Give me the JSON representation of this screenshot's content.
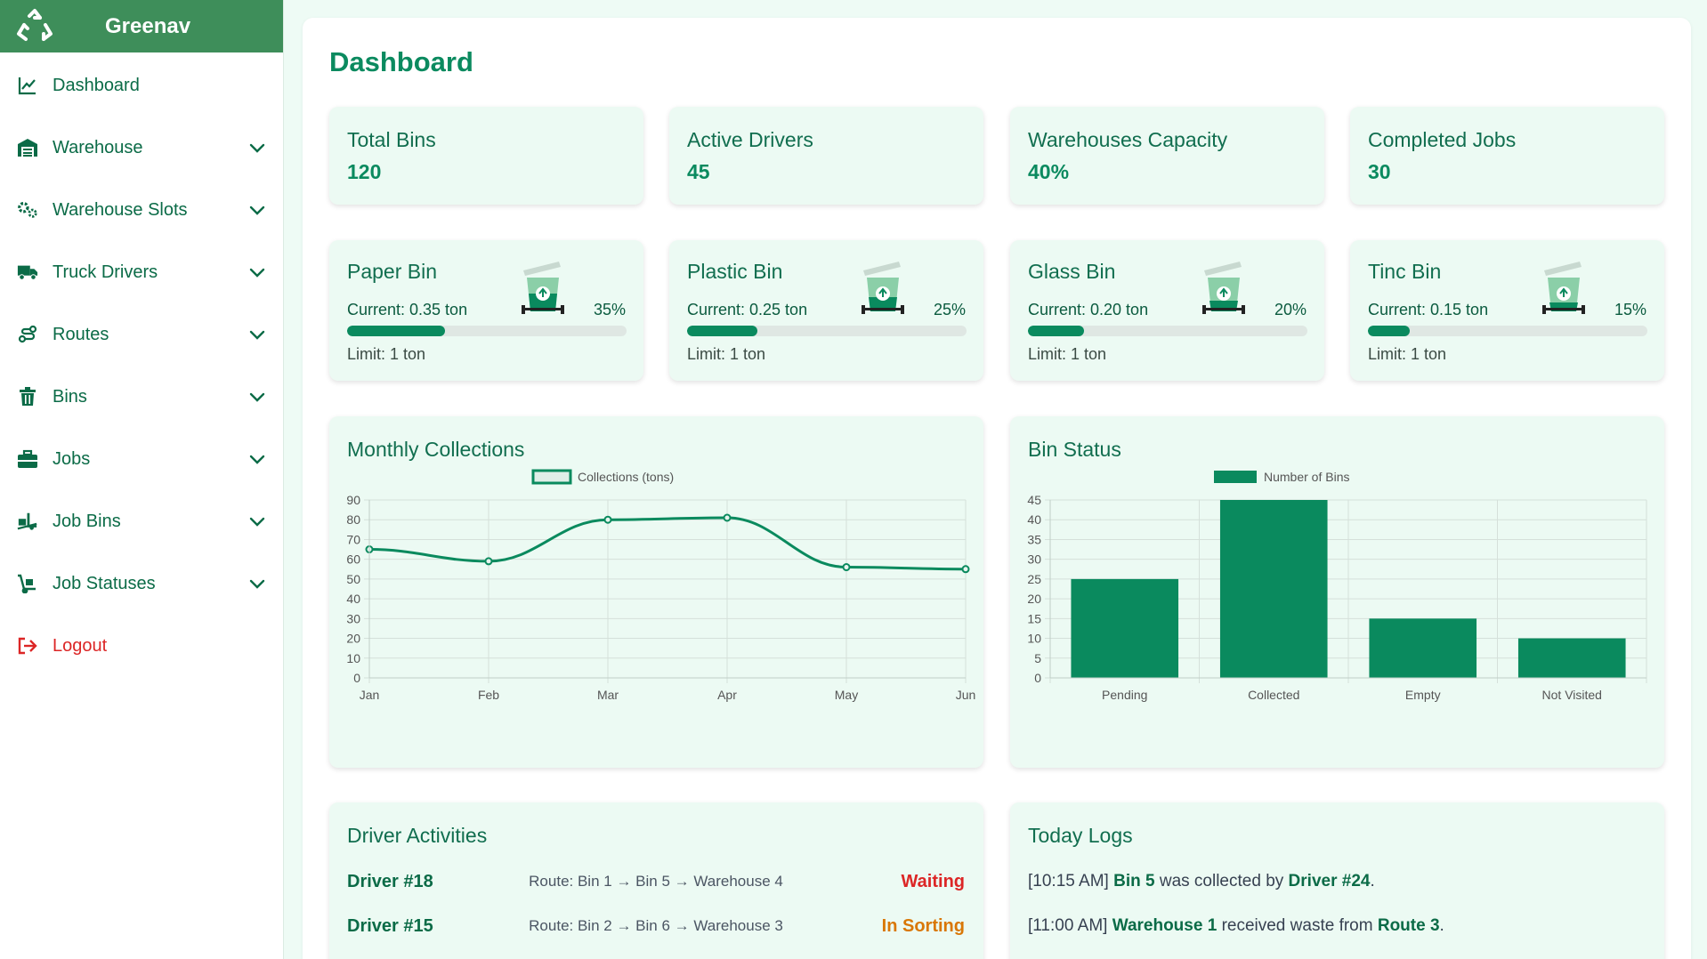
{
  "app": {
    "name": "Greenav"
  },
  "sidebar": {
    "items": [
      {
        "label": "Dashboard",
        "icon": "chart-line-icon",
        "has_chevron": false
      },
      {
        "label": "Warehouse",
        "icon": "warehouse-icon",
        "has_chevron": true
      },
      {
        "label": "Warehouse Slots",
        "icon": "gears-icon",
        "has_chevron": true
      },
      {
        "label": "Truck Drivers",
        "icon": "truck-icon",
        "has_chevron": true
      },
      {
        "label": "Routes",
        "icon": "route-icon",
        "has_chevron": true
      },
      {
        "label": "Bins",
        "icon": "trash-icon",
        "has_chevron": true
      },
      {
        "label": "Jobs",
        "icon": "briefcase-icon",
        "has_chevron": true
      },
      {
        "label": "Job Bins",
        "icon": "truck-ramp-box-icon",
        "has_chevron": true
      },
      {
        "label": "Job Statuses",
        "icon": "dolly-icon",
        "has_chevron": true
      }
    ],
    "logout_label": "Logout"
  },
  "page": {
    "title": "Dashboard"
  },
  "stats": [
    {
      "title": "Total Bins",
      "value": "120"
    },
    {
      "title": "Active Drivers",
      "value": "45"
    },
    {
      "title": "Warehouses Capacity",
      "value": "40%"
    },
    {
      "title": "Completed Jobs",
      "value": "30"
    }
  ],
  "bins": [
    {
      "title": "Paper Bin",
      "current": "Current: 0.35 ton",
      "percent_label": "35%",
      "percent": 35,
      "limit": "Limit: 1 ton"
    },
    {
      "title": "Plastic Bin",
      "current": "Current: 0.25 ton",
      "percent_label": "25%",
      "percent": 25,
      "limit": "Limit: 1 ton"
    },
    {
      "title": "Glass Bin",
      "current": "Current: 0.20 ton",
      "percent_label": "20%",
      "percent": 20,
      "limit": "Limit: 1 ton"
    },
    {
      "title": "Tinc Bin",
      "current": "Current: 0.15 ton",
      "percent_label": "15%",
      "percent": 15,
      "limit": "Limit: 1 ton"
    }
  ],
  "colors": {
    "primary": "#0a8a5e",
    "brand_bar": "#3e8e5a",
    "waiting": "#dc2626",
    "in_sorting": "#d97706",
    "card_bg": "#ecfaf3"
  },
  "chart_data": [
    {
      "type": "line",
      "title": "Monthly Collections",
      "categories": [
        "Jan",
        "Feb",
        "Mar",
        "Apr",
        "May",
        "Jun"
      ],
      "series": [
        {
          "name": "Collections (tons)",
          "values": [
            65,
            59,
            80,
            81,
            56,
            55
          ]
        }
      ],
      "ylim": [
        0,
        90
      ],
      "yticks": [
        0,
        10,
        20,
        30,
        40,
        50,
        60,
        70,
        80,
        90
      ],
      "legend": "top-center",
      "grid": true
    },
    {
      "type": "bar",
      "title": "Bin Status",
      "categories": [
        "Pending",
        "Collected",
        "Empty",
        "Not Visited"
      ],
      "series": [
        {
          "name": "Number of Bins",
          "values": [
            25,
            45,
            15,
            10
          ]
        }
      ],
      "ylim": [
        0,
        45
      ],
      "yticks": [
        0,
        5,
        10,
        15,
        20,
        25,
        30,
        35,
        40,
        45
      ],
      "legend": "top-center",
      "grid": true
    }
  ],
  "driver_activities": {
    "title": "Driver Activities",
    "rows": [
      {
        "driver": "Driver #18",
        "route": "Route: Bin 1 → Bin 5 → Warehouse 4",
        "status": "Waiting",
        "status_color": "#dc2626"
      },
      {
        "driver": "Driver #15",
        "route": "Route: Bin 2 → Bin 6 → Warehouse 3",
        "status": "In Sorting",
        "status_color": "#d97706"
      }
    ]
  },
  "today_logs": {
    "title": "Today Logs",
    "rows": [
      {
        "time": "[10:15 AM]",
        "subject": "Bin 5",
        "middle": "was collected by",
        "object": "Driver #24",
        "end": "."
      },
      {
        "time": "[11:00 AM]",
        "subject": "Warehouse 1",
        "middle": "received waste from",
        "object": "Route 3",
        "end": "."
      }
    ]
  }
}
